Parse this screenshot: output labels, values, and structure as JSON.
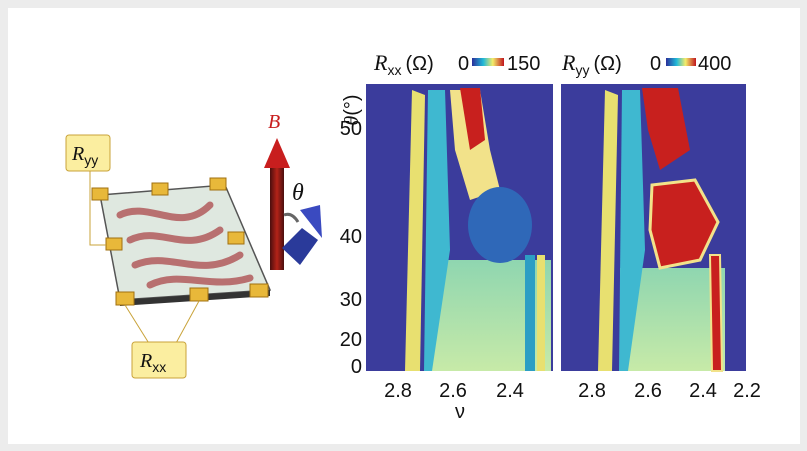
{
  "panels": [
    {
      "label": {
        "symbol": "R",
        "subscript": "xx",
        "unit": "(Ω)"
      },
      "colorbar": {
        "min": "0",
        "max": "150"
      },
      "xticks": [
        "2.8",
        "2.6",
        "2.4"
      ]
    },
    {
      "label": {
        "symbol": "R",
        "subscript": "yy",
        "unit": "(Ω)"
      },
      "colorbar": {
        "min": "0",
        "max": "400"
      },
      "xticks": [
        "2.8",
        "2.6",
        "2.4",
        "2.2"
      ]
    }
  ],
  "y_axis": {
    "symbol": "θ",
    "unit": "(°)",
    "ticks": [
      "50",
      "40",
      "30",
      "20",
      "0"
    ]
  },
  "x_axis_label": "ν",
  "schematic": {
    "field": "B",
    "angle": "θ",
    "probe_yy": {
      "symbol": "R",
      "subscript": "yy"
    },
    "probe_xx": {
      "symbol": "R",
      "subscript": "xx"
    }
  }
}
